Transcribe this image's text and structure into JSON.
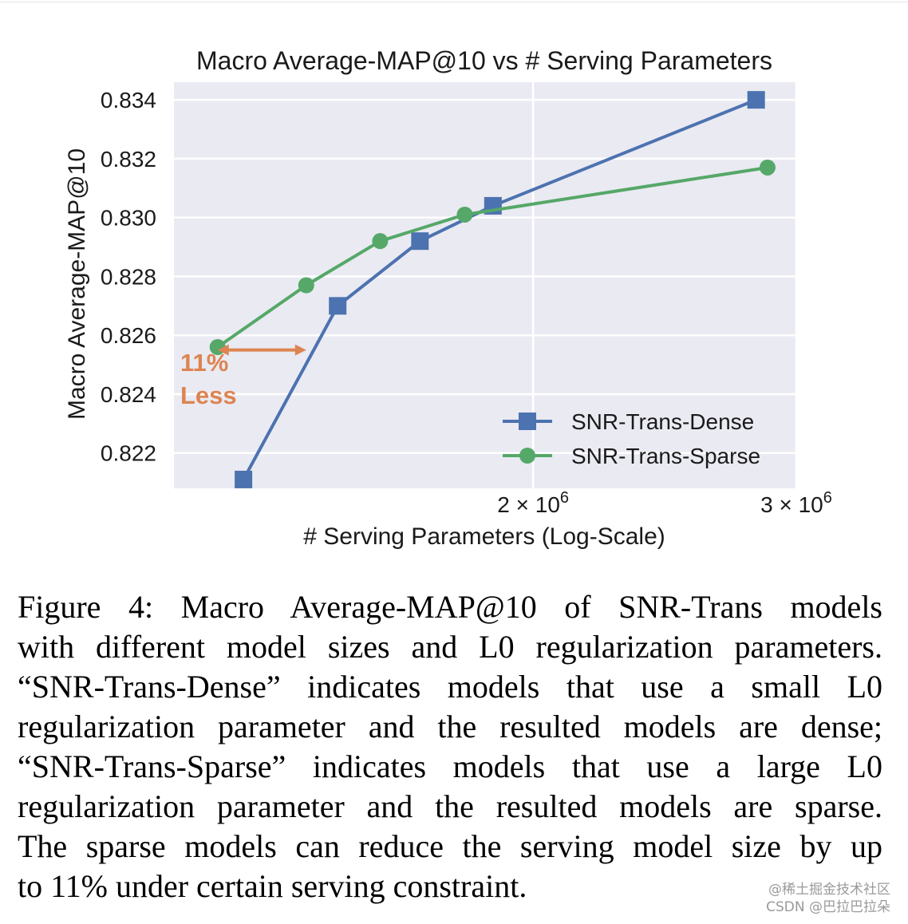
{
  "chart_data": {
    "type": "line",
    "title": "Macro Average-MAP@10 vs # Serving Parameters",
    "xlabel": "# Serving Parameters (Log-Scale)",
    "ylabel": "Macro Average-MAP@10",
    "xscale": "log",
    "xlim": [
      1150000,
      3000000
    ],
    "ylim": [
      0.8208,
      0.8346
    ],
    "yticks": [
      0.822,
      0.824,
      0.826,
      0.828,
      0.83,
      0.832,
      0.834
    ],
    "ytick_labels": [
      "0.822",
      "0.824",
      "0.826",
      "0.828",
      "0.830",
      "0.832",
      "0.834"
    ],
    "xticks": [
      {
        "value": 2000000,
        "mantissa": "2",
        "times": "×",
        "base": "10",
        "exp": "6"
      },
      {
        "value": 3000000,
        "mantissa": "3",
        "times": "×",
        "base": "10",
        "exp": "6"
      }
    ],
    "grid": true,
    "legend_position": "lower-right",
    "series": [
      {
        "name": "SNR-Trans-Dense",
        "color": "#4c72b0",
        "marker": "square",
        "x": [
          1280000,
          1480000,
          1680000,
          1880000,
          2820000
        ],
        "y": [
          0.8211,
          0.827,
          0.8292,
          0.8304,
          0.834
        ]
      },
      {
        "name": "SNR-Trans-Sparse",
        "color": "#55a868",
        "marker": "circle",
        "x": [
          1230000,
          1410000,
          1580000,
          1800000,
          2870000
        ],
        "y": [
          0.8256,
          0.8277,
          0.8292,
          0.8301,
          0.8317
        ]
      }
    ],
    "annotation": {
      "line1": "11%",
      "line2": "Less",
      "color": "#dd8452",
      "x_start": 1230000,
      "x_end": 1410000,
      "y": 0.8255
    }
  },
  "caption": {
    "lines": [
      "Figure 4: Macro Average-MAP@10 of SNR-Trans models",
      "with different model sizes and L0 regularization parameters.",
      "“SNR-Trans-Dense” indicates models that use a small L0",
      "regularization parameter and the resulted models are dense;",
      "“SNR-Trans-Sparse” indicates models that use a large L0",
      "regularization parameter and the resulted models are sparse.",
      "The sparse models can reduce the serving model size by up",
      "to 11% under certain serving constraint."
    ]
  },
  "watermark": {
    "line1": "@稀土掘金技术社区",
    "line2": "CSDN @巴拉巴拉朵"
  }
}
